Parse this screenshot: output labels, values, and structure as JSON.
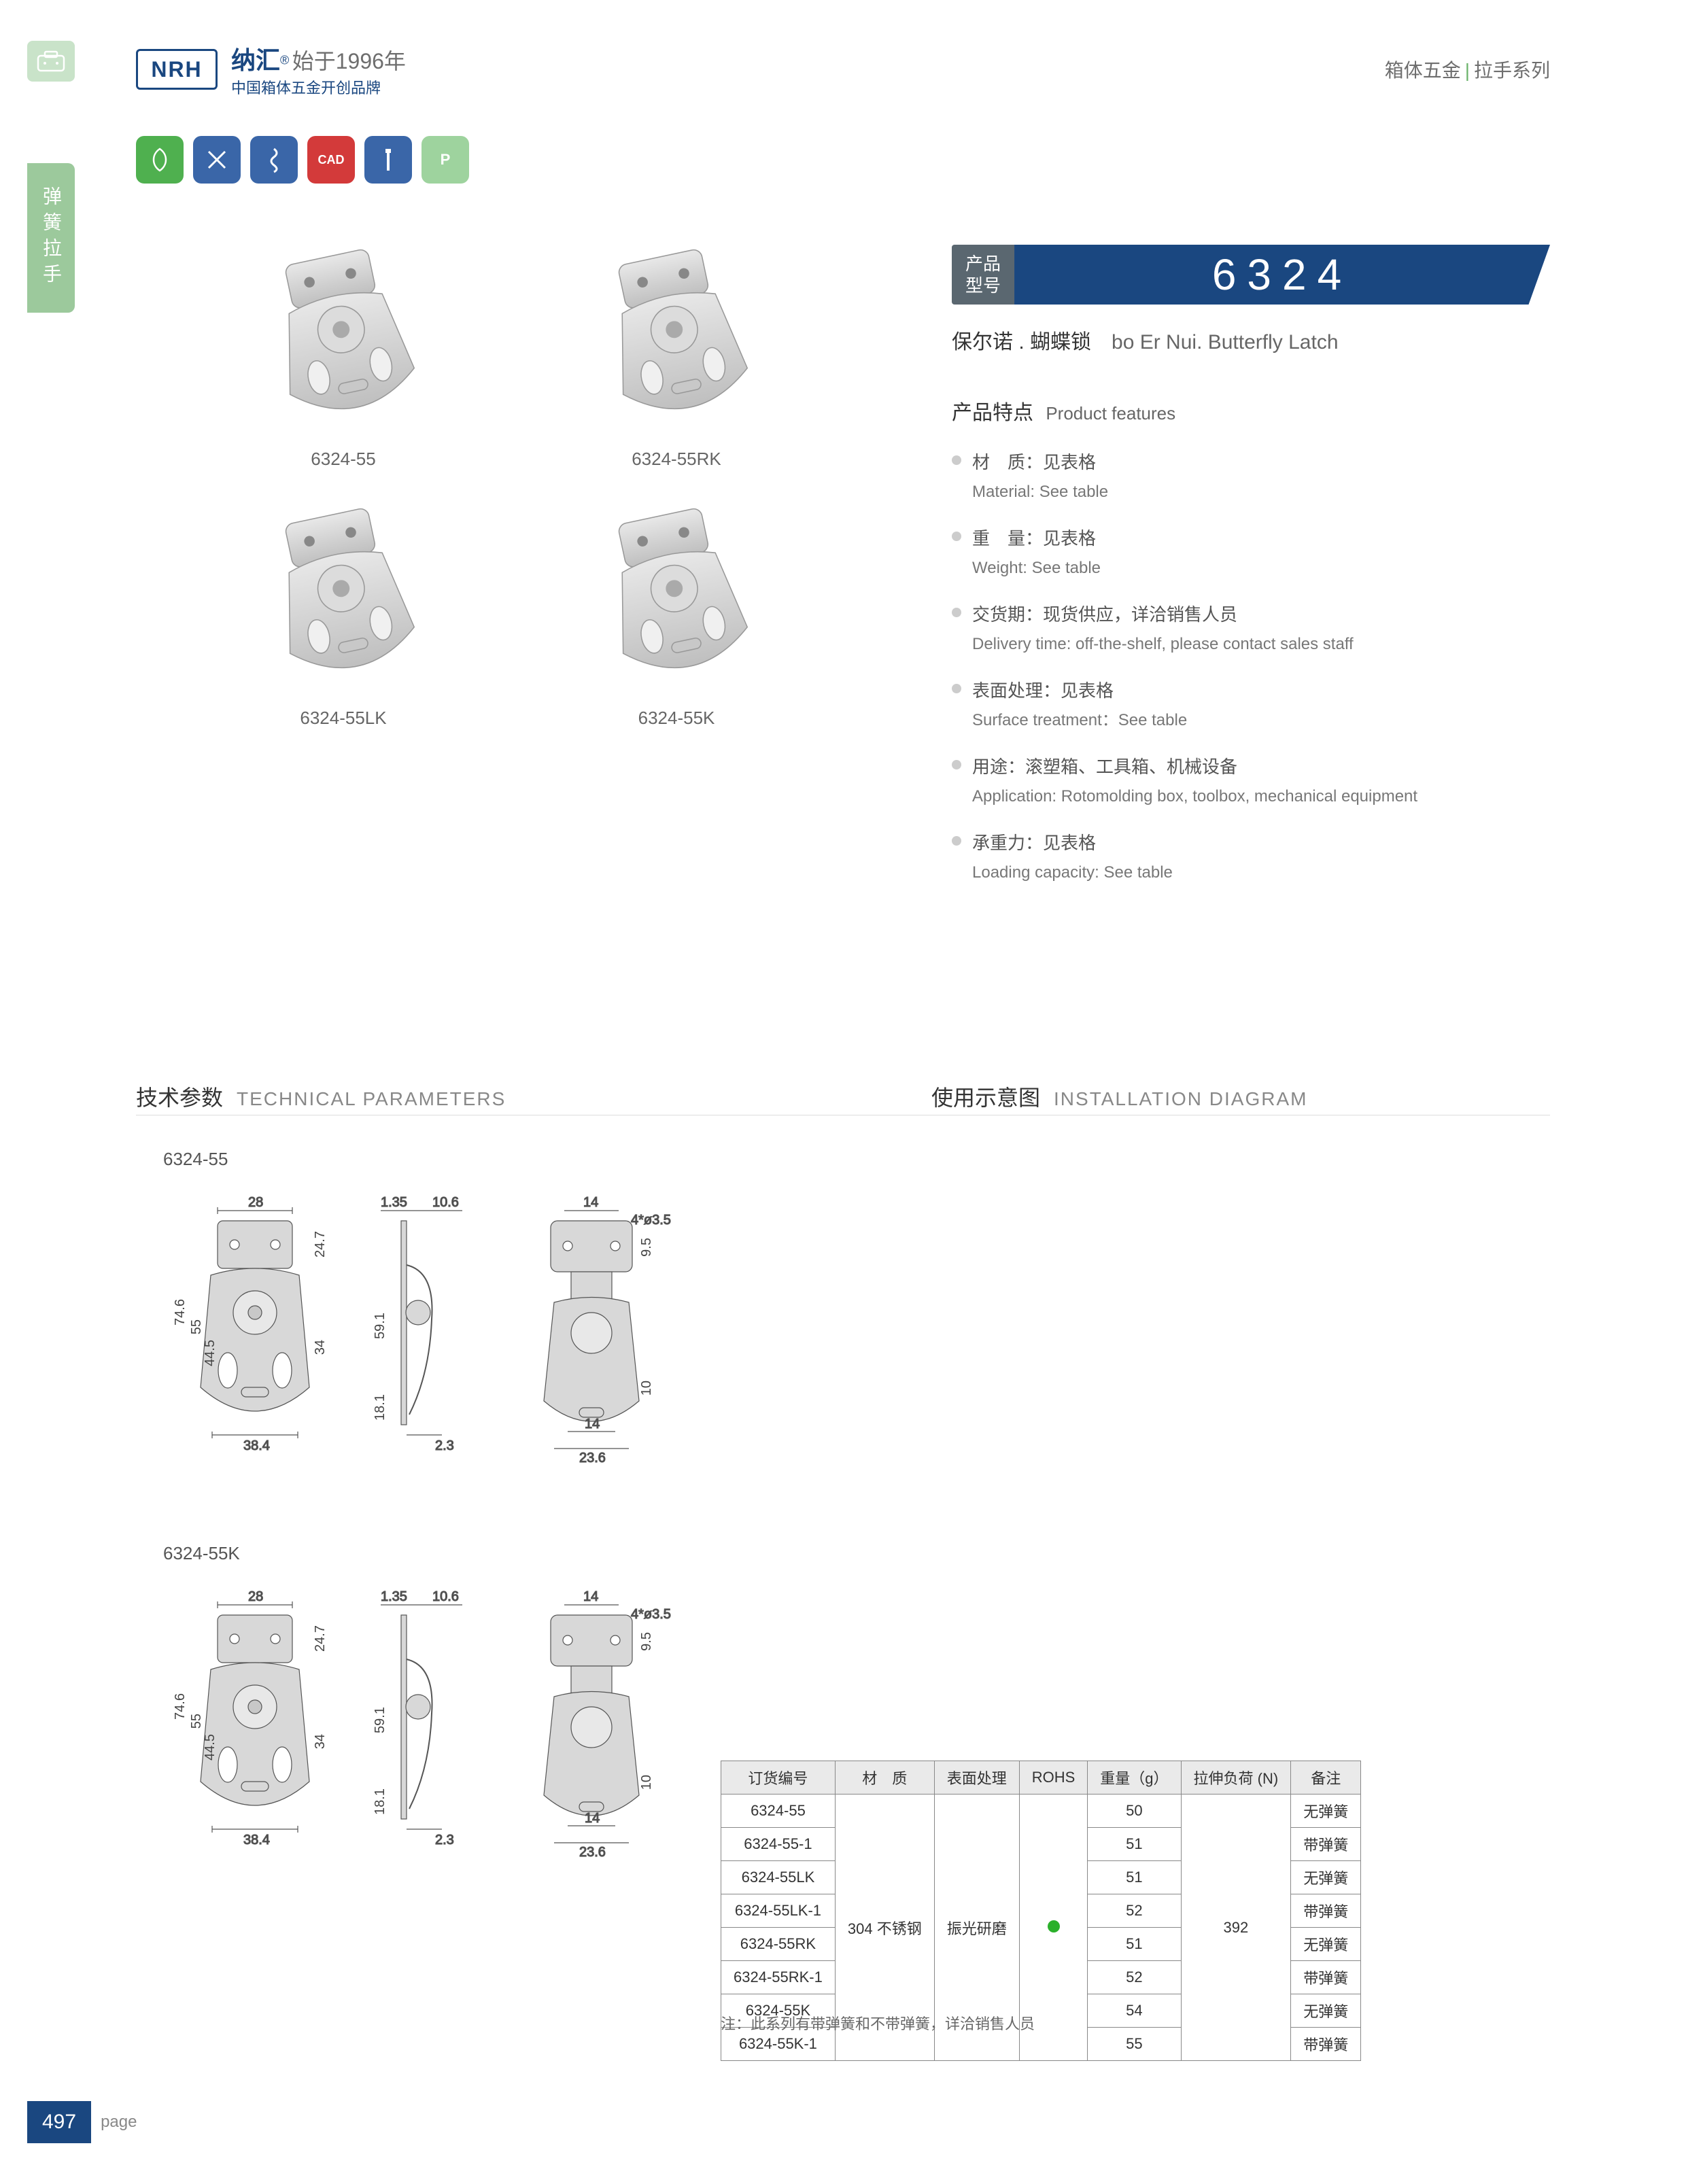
{
  "header": {
    "logo": "NRH",
    "brand_cn": "纳汇",
    "brand_year": "始于1996年",
    "brand_sub": "中国箱体五金开创品牌",
    "category1": "箱体五金",
    "category2": "拉手系列",
    "reg": "®"
  },
  "side": {
    "tab": "弹簧拉手"
  },
  "badges": {
    "colors": [
      "#4fb04f",
      "#3a66a8",
      "#3a66a8",
      "#d33a3a",
      "#3a66a8",
      "#9ed39e"
    ],
    "cad": "CAD",
    "p": "P"
  },
  "products": {
    "items": [
      {
        "label": "6324-55"
      },
      {
        "label": "6324-55RK"
      },
      {
        "label": "6324-55LK"
      },
      {
        "label": "6324-55K"
      }
    ]
  },
  "model": {
    "label1": "产品",
    "label2": "型号",
    "number": "6324",
    "name_cn": "保尔诺 . 蝴蝶锁",
    "name_en": "bo Er Nui. Butterfly Latch"
  },
  "features": {
    "title_cn": "产品特点",
    "title_en": "Product features",
    "items": [
      {
        "cn": "材　质：见表格",
        "en": "Material: See table"
      },
      {
        "cn": "重　量：见表格",
        "en": "Weight: See table"
      },
      {
        "cn": "交货期：现货供应，详洽销售人员",
        "en": "Delivery time: off-the-shelf, please contact sales staff"
      },
      {
        "cn": "表面处理：见表格",
        "en": "Surface treatment：See table"
      },
      {
        "cn": "用途：滚塑箱、工具箱、机械设备",
        "en": "Application: Rotomolding box, toolbox, mechanical equipment"
      },
      {
        "cn": "承重力：见表格",
        "en": "Loading capacity: See table"
      }
    ]
  },
  "sections": {
    "tech_cn": "技术参数",
    "tech_en": "TECHNICAL PARAMETERS",
    "inst_cn": "使用示意图",
    "inst_en": "INSTALLATION DIAGRAM"
  },
  "tech": {
    "model1": "6324-55",
    "model2": "6324-55K",
    "dims": {
      "w28": "28",
      "t135": "1.35",
      "t106": "10.6",
      "w14": "14",
      "hole": "4*ø3.5",
      "h247": "24.7",
      "h95": "9.5",
      "h746": "74.6",
      "h55": "55",
      "h445": "44.5",
      "h34": "34",
      "h591": "59.1",
      "h181": "18.1",
      "h10": "10",
      "w384": "38.4",
      "w23": "2.3",
      "w236": "23.6"
    },
    "dim_color": "#444444",
    "drawing_fill": "#d8d8d8",
    "drawing_stroke": "#555555"
  },
  "table": {
    "headers": [
      "订货编号",
      "材　质",
      "表面处理",
      "ROHS",
      "重量（g）",
      "拉伸负荷 (N)",
      "备注"
    ],
    "material": "304 不锈钢",
    "surface": "振光研磨",
    "load": "392",
    "rows": [
      {
        "code": "6324-55",
        "weight": "50",
        "note": "无弹簧"
      },
      {
        "code": "6324-55-1",
        "weight": "51",
        "note": "带弹簧"
      },
      {
        "code": "6324-55LK",
        "weight": "51",
        "note": "无弹簧"
      },
      {
        "code": "6324-55LK-1",
        "weight": "52",
        "note": "带弹簧"
      },
      {
        "code": "6324-55RK",
        "weight": "51",
        "note": "无弹簧"
      },
      {
        "code": "6324-55RK-1",
        "weight": "52",
        "note": "带弹簧"
      },
      {
        "code": "6324-55K",
        "weight": "54",
        "note": "无弹簧"
      },
      {
        "code": "6324-55K-1",
        "weight": "55",
        "note": "带弹簧"
      }
    ],
    "note": "注：此系列有带弹簧和不带弹簧，详洽销售人员"
  },
  "footer": {
    "num": "497",
    "label": "page"
  }
}
